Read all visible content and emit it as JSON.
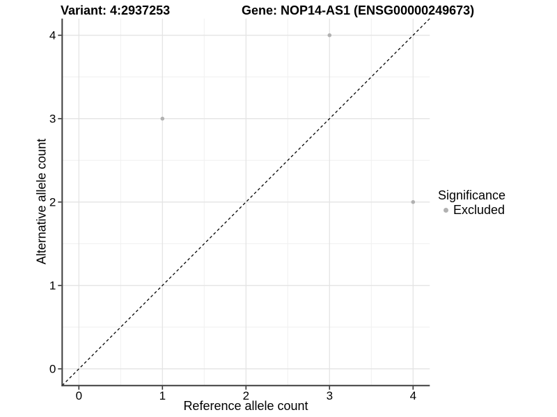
{
  "title": {
    "variant": "Variant: 4:2937253",
    "gene": "Gene: NOP14-AS1 (ENSG00000249673)"
  },
  "axes": {
    "x_label": "Reference allele count",
    "y_label": "Alternative allele count"
  },
  "legend": {
    "title": "Significance",
    "items": [
      {
        "label": "Excluded",
        "color": "#b1b1b1"
      }
    ]
  },
  "colors": {
    "background": "#ffffff",
    "point_gray": "#b1b1b1",
    "grid_major": "#e4e4e4",
    "grid_minor": "#f1f1f1",
    "axis_line": "#3d3d3d",
    "tick_mark": "#333333",
    "text": "#000000",
    "reference_line": "#000000"
  },
  "chart_data": {
    "type": "scatter",
    "title": "Variant: 4:2937253    Gene: NOP14-AS1 (ENSG00000249673)",
    "xlabel": "Reference allele count",
    "ylabel": "Alternative allele count",
    "xlim": [
      -0.2,
      4.2
    ],
    "ylim": [
      -0.2,
      4.2
    ],
    "x_ticks": [
      0,
      1,
      2,
      3,
      4
    ],
    "y_ticks": [
      0,
      1,
      2,
      3,
      4
    ],
    "x_tick_labels": [
      "0",
      "1",
      "2",
      "3",
      "4"
    ],
    "y_tick_labels": [
      "0",
      "1",
      "2",
      "3",
      "4"
    ],
    "minor_ticks": [
      0.5,
      1.5,
      2.5,
      3.5
    ],
    "grid": "major+minor",
    "legend_position": "right",
    "series": [
      {
        "name": "Excluded",
        "color": "#b1b1b1",
        "points": [
          {
            "x": 1,
            "y": 3
          },
          {
            "x": 3,
            "y": 4
          },
          {
            "x": 4,
            "y": 2
          }
        ]
      }
    ],
    "reference_line": {
      "type": "identity",
      "from": [
        -0.2,
        -0.2
      ],
      "to": [
        4.2,
        4.2
      ],
      "style": "dashed",
      "color": "#000000"
    }
  }
}
